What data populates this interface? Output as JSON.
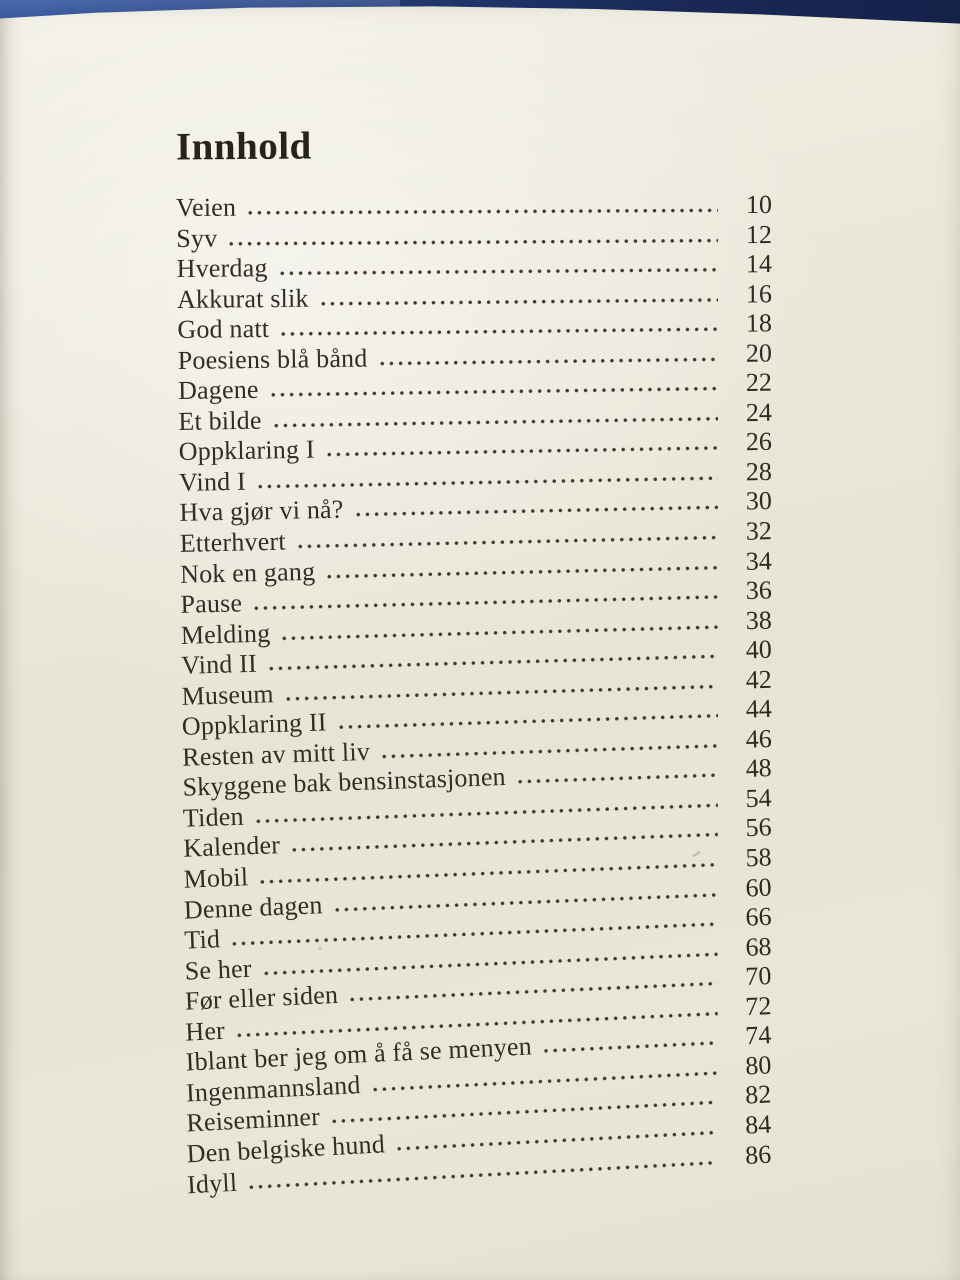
{
  "page": {
    "title": "Innhold"
  },
  "toc": {
    "entries": [
      {
        "title": "Veien",
        "page": "10"
      },
      {
        "title": "Syv",
        "page": "12"
      },
      {
        "title": "Hverdag",
        "page": "14"
      },
      {
        "title": "Akkurat slik",
        "page": "16"
      },
      {
        "title": "God natt",
        "page": "18"
      },
      {
        "title": "Poesiens blå bånd",
        "page": "20"
      },
      {
        "title": "Dagene",
        "page": "22"
      },
      {
        "title": "Et bilde",
        "page": "24"
      },
      {
        "title": "Oppklaring I",
        "page": "26"
      },
      {
        "title": "Vind I",
        "page": "28"
      },
      {
        "title": "Hva gjør vi nå?",
        "page": "30"
      },
      {
        "title": "Etterhvert",
        "page": "32"
      },
      {
        "title": "Nok en gang",
        "page": "34"
      },
      {
        "title": "Pause",
        "page": "36"
      },
      {
        "title": "Melding",
        "page": "38"
      },
      {
        "title": "Vind II",
        "page": "40"
      },
      {
        "title": "Museum",
        "page": "42"
      },
      {
        "title": "Oppklaring II",
        "page": "44"
      },
      {
        "title": "Resten av mitt liv",
        "page": "46"
      },
      {
        "title": "Skyggene bak bensinstasjonen",
        "page": "48"
      },
      {
        "title": "Tiden",
        "page": "54"
      },
      {
        "title": "Kalender",
        "page": "56"
      },
      {
        "title": "Mobil",
        "page": "58"
      },
      {
        "title": "Denne dagen",
        "page": "60"
      },
      {
        "title": "Tid",
        "page": "66"
      },
      {
        "title": "Se her",
        "page": "68"
      },
      {
        "title": "Før eller siden",
        "page": "70"
      },
      {
        "title": "Her",
        "page": "72"
      },
      {
        "title": "Iblant ber jeg om å få se menyen",
        "page": "74"
      },
      {
        "title": "Ingenmannsland",
        "page": "80"
      },
      {
        "title": "Reiseminner",
        "page": "82"
      },
      {
        "title": "Den belgiske hund",
        "page": "84"
      },
      {
        "title": "Idyll",
        "page": "86"
      }
    ]
  },
  "colors": {
    "cover_blue_light": "#33529a",
    "cover_blue_dark": "#111b3e",
    "paper": "#ebe8db",
    "ink": "#302d24"
  }
}
